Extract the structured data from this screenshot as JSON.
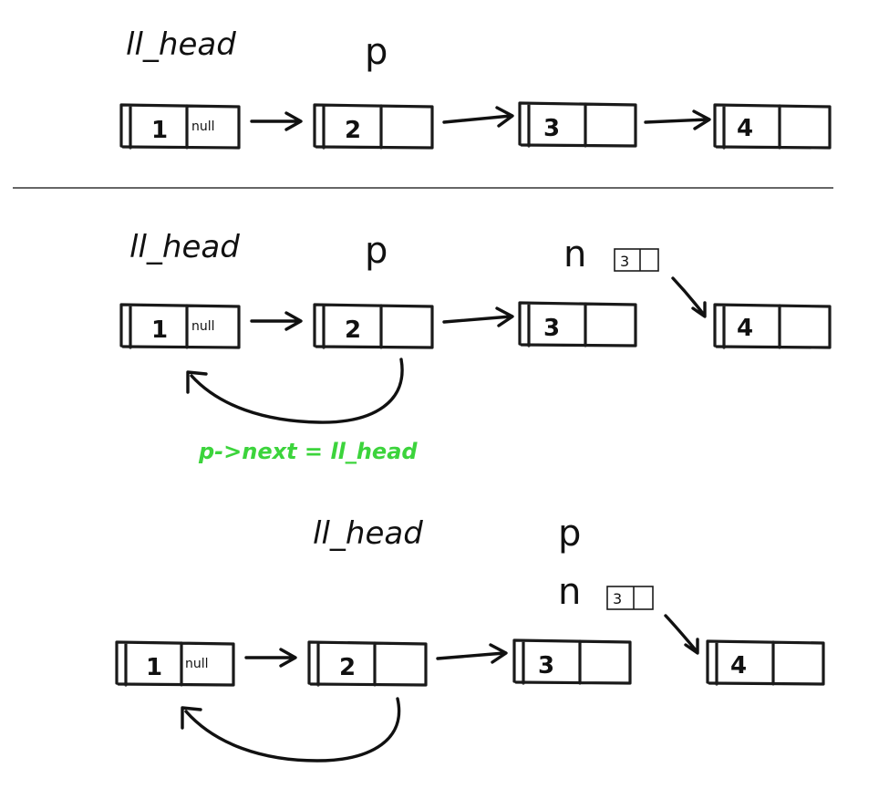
{
  "labels": {
    "ll_head": "ll_head",
    "p": "p",
    "n": "n",
    "null": "null",
    "assignment": "p->next = ll_head"
  },
  "nodes": [
    "1",
    "2",
    "3",
    "4"
  ],
  "n_node_value": "3"
}
